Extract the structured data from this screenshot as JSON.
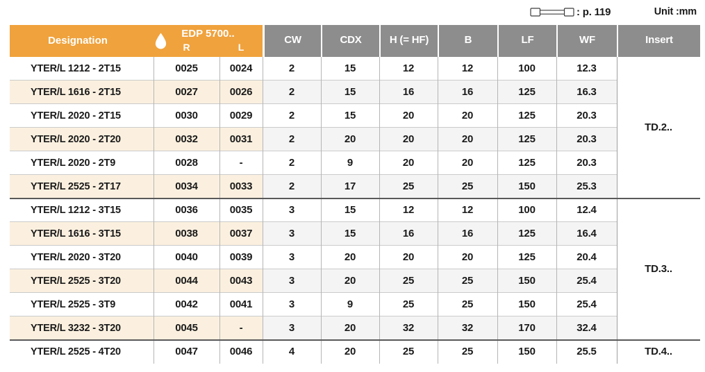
{
  "meta": {
    "legend_ref": ": p. 119",
    "unit_label": "Unit :mm"
  },
  "colors": {
    "header_orange": "#F0A23C",
    "header_gray": "#8D8D8D",
    "row_cream": "#FBF0DF",
    "row_gray": "#F4F4F4",
    "group_line": "#595959",
    "row_line": "#CBCBCB",
    "col_line": "#B5B5B5",
    "text": "#1A1A1A"
  },
  "header": {
    "designation": "Designation",
    "coolant_icon": "coolant-drop-icon",
    "edp_title": "EDP 5700..",
    "edp_sub_r": "R",
    "edp_sub_l": "L",
    "columns": [
      "CW",
      "CDX",
      "H (= HF)",
      "B",
      "LF",
      "WF",
      "Insert"
    ]
  },
  "table": {
    "rows": [
      {
        "designation": "YTER/L 1212 - 2T15",
        "r": "0025",
        "l": "0024",
        "cw": "2",
        "cdx": "15",
        "h": "12",
        "b": "12",
        "lf": "100",
        "wf": "12.3"
      },
      {
        "designation": "YTER/L 1616 - 2T15",
        "r": "0027",
        "l": "0026",
        "cw": "2",
        "cdx": "15",
        "h": "16",
        "b": "16",
        "lf": "125",
        "wf": "16.3"
      },
      {
        "designation": "YTER/L 2020 - 2T15",
        "r": "0030",
        "l": "0029",
        "cw": "2",
        "cdx": "15",
        "h": "20",
        "b": "20",
        "lf": "125",
        "wf": "20.3"
      },
      {
        "designation": "YTER/L 2020 - 2T20",
        "r": "0032",
        "l": "0031",
        "cw": "2",
        "cdx": "20",
        "h": "20",
        "b": "20",
        "lf": "125",
        "wf": "20.3"
      },
      {
        "designation": "YTER/L 2020 - 2T9",
        "r": "0028",
        "l": "-",
        "cw": "2",
        "cdx": "9",
        "h": "20",
        "b": "20",
        "lf": "125",
        "wf": "20.3"
      },
      {
        "designation": "YTER/L 2525 - 2T17",
        "r": "0034",
        "l": "0033",
        "cw": "2",
        "cdx": "17",
        "h": "25",
        "b": "25",
        "lf": "150",
        "wf": "25.3"
      },
      {
        "designation": "YTER/L 1212 - 3T15",
        "r": "0036",
        "l": "0035",
        "cw": "3",
        "cdx": "15",
        "h": "12",
        "b": "12",
        "lf": "100",
        "wf": "12.4"
      },
      {
        "designation": "YTER/L 1616 - 3T15",
        "r": "0038",
        "l": "0037",
        "cw": "3",
        "cdx": "15",
        "h": "16",
        "b": "16",
        "lf": "125",
        "wf": "16.4"
      },
      {
        "designation": "YTER/L 2020 - 3T20",
        "r": "0040",
        "l": "0039",
        "cw": "3",
        "cdx": "20",
        "h": "20",
        "b": "20",
        "lf": "125",
        "wf": "20.4"
      },
      {
        "designation": "YTER/L 2525 - 3T20",
        "r": "0044",
        "l": "0043",
        "cw": "3",
        "cdx": "20",
        "h": "25",
        "b": "25",
        "lf": "150",
        "wf": "25.4"
      },
      {
        "designation": "YTER/L 2525 - 3T9",
        "r": "0042",
        "l": "0041",
        "cw": "3",
        "cdx": "9",
        "h": "25",
        "b": "25",
        "lf": "150",
        "wf": "25.4"
      },
      {
        "designation": "YTER/L 3232 - 3T20",
        "r": "0045",
        "l": "-",
        "cw": "3",
        "cdx": "20",
        "h": "32",
        "b": "32",
        "lf": "170",
        "wf": "32.4"
      },
      {
        "designation": "YTER/L 2525 - 4T20",
        "r": "0047",
        "l": "0046",
        "cw": "4",
        "cdx": "20",
        "h": "25",
        "b": "25",
        "lf": "150",
        "wf": "25.5"
      }
    ],
    "insert_groups": [
      {
        "label": "TD.2..",
        "start": 1,
        "span": 6
      },
      {
        "label": "TD.3..",
        "start": 7,
        "span": 6
      },
      {
        "label": "TD.4..",
        "start": 13,
        "span": 1
      }
    ]
  }
}
